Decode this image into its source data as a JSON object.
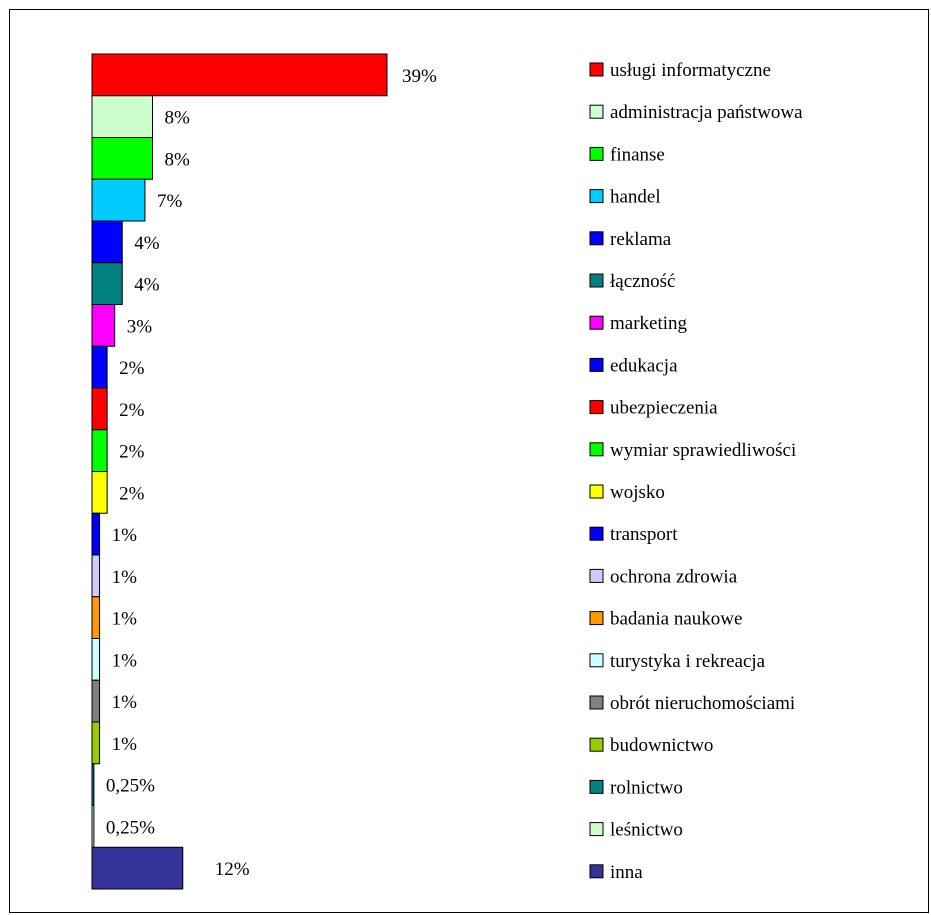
{
  "chart_data": {
    "type": "bar",
    "orientation": "horizontal",
    "unit": "%",
    "categories": [
      "usługi informatyczne",
      "administracja państwowa",
      "finanse",
      "handel",
      "reklama",
      "łączność",
      "marketing",
      "edukacja",
      "ubezpieczenia",
      "wymiar sprawiedliwości",
      "wojsko",
      "transport",
      "ochrona zdrowia",
      "badania naukowe",
      "turystyka i rekreacja",
      "obrót nieruchomościami",
      "budownictwo",
      "rolnictwo",
      "leśnictwo",
      "inna"
    ],
    "values": [
      39,
      8,
      8,
      7,
      4,
      4,
      3,
      2,
      2,
      2,
      2,
      1,
      1,
      1,
      1,
      1,
      1,
      0.25,
      0.25,
      12
    ],
    "data_labels": [
      "39%",
      "8%",
      "8%",
      "7%",
      "4%",
      "4%",
      "3%",
      "2%",
      "2%",
      "2%",
      "2%",
      "1%",
      "1%",
      "1%",
      "1%",
      "1%",
      "1%",
      "0,25%",
      "0,25%",
      "12%"
    ],
    "colors": [
      "#ff0000",
      "#ccffcc",
      "#00ff00",
      "#00ccff",
      "#0000ff",
      "#008080",
      "#ff00ff",
      "#0000ff",
      "#ff0000",
      "#00ff00",
      "#ffff00",
      "#0000ff",
      "#ccccff",
      "#ff9900",
      "#ccffff",
      "#808080",
      "#99cc00",
      "#008080",
      "#ccffcc",
      "#333399"
    ],
    "legend": "right",
    "grid": false,
    "xlim": [
      0,
      39
    ]
  }
}
